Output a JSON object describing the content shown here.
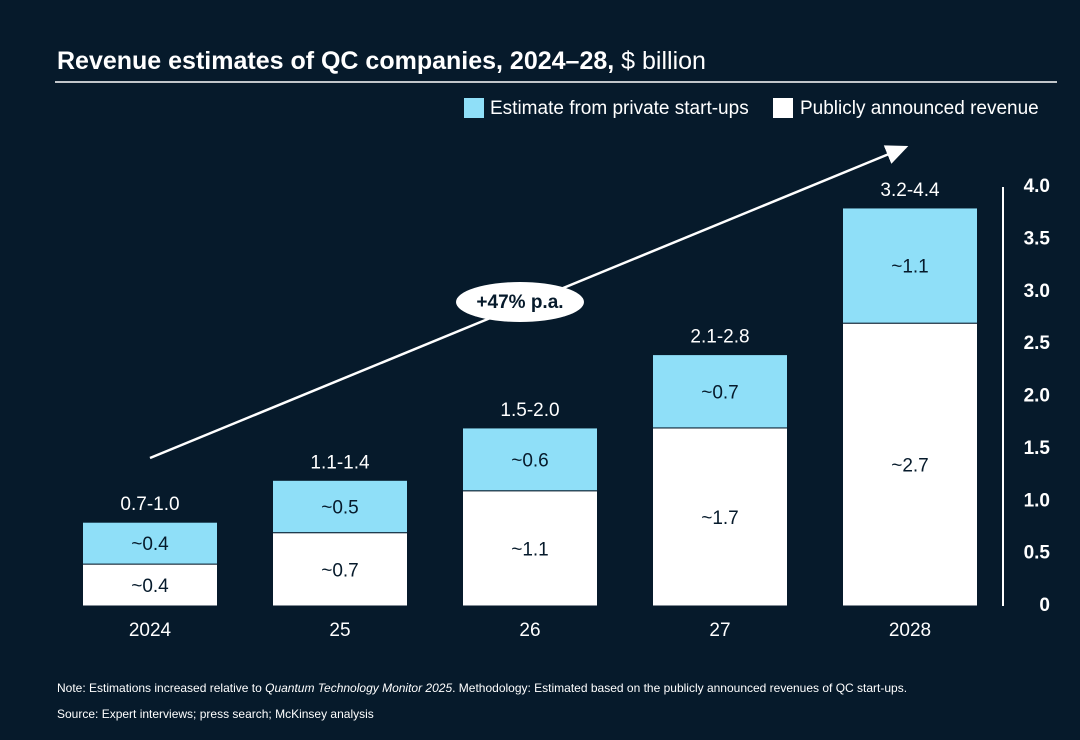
{
  "chart_data": {
    "type": "stacked_bar",
    "title": "Revenue estimates of QC companies, 2024–28,",
    "subtitle": "$ billion",
    "categories": [
      "2024",
      "25",
      "26",
      "27",
      "2028"
    ],
    "series": [
      {
        "name": "Publicly announced revenue",
        "color": "#ffffff",
        "values": [
          0.4,
          0.7,
          1.1,
          1.7,
          2.7
        ],
        "value_labels": [
          "~0.4",
          "~0.7",
          "~1.1",
          "~1.7",
          "~2.7"
        ]
      },
      {
        "name": "Estimate from private start-ups",
        "color": "#8fdff8",
        "values": [
          0.4,
          0.5,
          0.6,
          0.7,
          1.1
        ],
        "value_labels": [
          "~0.4",
          "~0.5",
          "~0.6",
          "~0.7",
          "~1.1"
        ]
      }
    ],
    "total_labels": [
      "0.7-1.0",
      "1.1-1.4",
      "1.5-2.0",
      "2.1-2.8",
      "3.2-4.4"
    ],
    "ylim": [
      0,
      4
    ],
    "yticks": [
      0,
      0.5,
      {
        "value": 1,
        "label": "1.0"
      },
      1.5,
      {
        "value": 2,
        "label": "2.0"
      },
      2.5,
      {
        "value": 3,
        "label": "3.0"
      },
      3.5,
      {
        "value": 4,
        "label": "4.0"
      }
    ],
    "growth_annotation": "+47% p.a.",
    "note": [
      "Note: Estimations increased relative to ",
      "Quantum Technology Monitor 2025",
      ". Methodology: Estimated based on the publicly announced revenues of QC start-ups."
    ],
    "source": "Source: Expert interviews; press search; McKinsey analysis"
  }
}
